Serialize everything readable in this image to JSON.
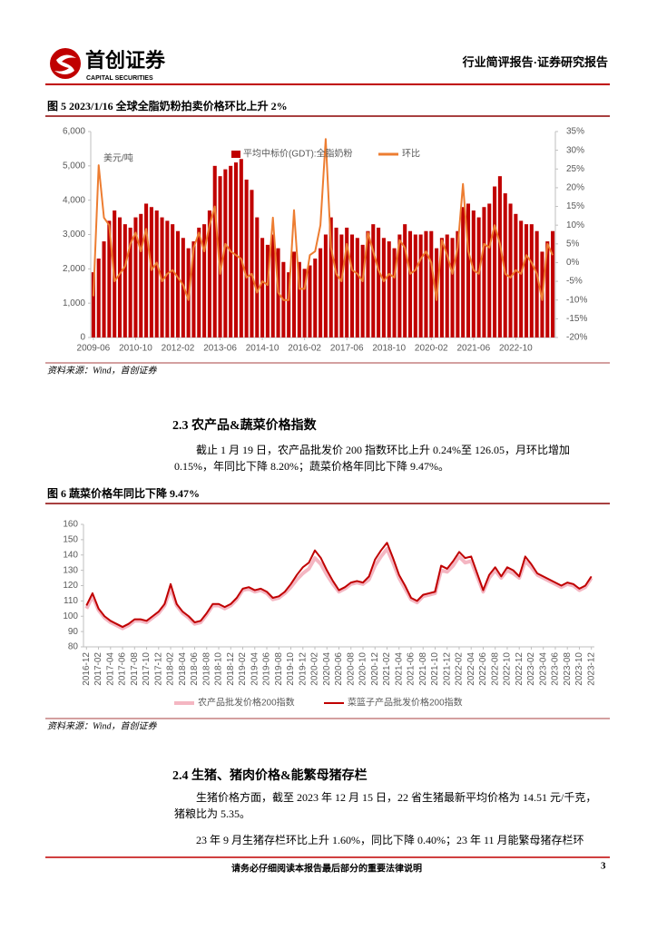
{
  "header": {
    "logo_cn": "首创证券",
    "logo_en": "CAPITAL SECURITIES",
    "right": "行业简评报告·证券研究报告"
  },
  "chart_data": [
    {
      "type": "combo",
      "title": "图 5 2023/1/16 全球全脂奶粉拍卖价格环比上升 2%",
      "unit": "美元/吨",
      "source": "资料来源：Wind，首创证券",
      "legend": "top",
      "categories": [
        "2009-06",
        null,
        null,
        null,
        null,
        null,
        null,
        null,
        "2010-10",
        null,
        null,
        null,
        null,
        null,
        null,
        null,
        "2012-02",
        null,
        null,
        null,
        null,
        null,
        null,
        null,
        "2013-06",
        null,
        null,
        null,
        null,
        null,
        null,
        null,
        "2014-10",
        null,
        null,
        null,
        null,
        null,
        null,
        null,
        "2016-02",
        null,
        null,
        null,
        null,
        null,
        null,
        null,
        "2017-06",
        null,
        null,
        null,
        null,
        null,
        null,
        null,
        "2018-10",
        null,
        null,
        null,
        null,
        null,
        null,
        null,
        "2020-02",
        null,
        null,
        null,
        null,
        null,
        null,
        null,
        "2021-06",
        null,
        null,
        null,
        null,
        null,
        null,
        null,
        "2022-10",
        null,
        null,
        null,
        null,
        null,
        null,
        null
      ],
      "series": [
        {
          "name": "平均中标价(GDT):全脂奶粉",
          "type": "bar",
          "color": "#c00000",
          "values": [
            1900,
            2300,
            2800,
            3400,
            3700,
            3500,
            3300,
            3200,
            3500,
            3600,
            3900,
            3800,
            3700,
            3500,
            3400,
            3300,
            3100,
            2900,
            2600,
            2800,
            3200,
            3300,
            3700,
            5000,
            4700,
            4900,
            5000,
            5100,
            5200,
            4600,
            4300,
            3500,
            2900,
            2700,
            3000,
            2600,
            2200,
            1900,
            2500,
            2200,
            2000,
            2100,
            2300,
            2600,
            3000,
            3500,
            3200,
            3000,
            3200,
            3000,
            2900,
            2700,
            3100,
            3300,
            3200,
            2900,
            2800,
            2600,
            3000,
            3300,
            3100,
            3000,
            3000,
            3100,
            3100,
            2600,
            2900,
            3000,
            2900,
            3100,
            3800,
            3900,
            3700,
            3500,
            3800,
            3900,
            4400,
            4700,
            4200,
            3900,
            3600,
            3400,
            3300,
            3300,
            3100,
            2500,
            2800,
            3100
          ]
        },
        {
          "name": "环比",
          "type": "line",
          "axis": "y2",
          "color": "#ed7d31",
          "values": [
            -9,
            26,
            12,
            10,
            -5,
            -3,
            -1,
            5,
            8,
            3,
            9,
            -2,
            0,
            -5,
            -3,
            -2,
            -4,
            -6,
            -10,
            4,
            8,
            3,
            10,
            15,
            -3,
            5,
            3,
            2,
            1,
            -4,
            -3,
            -8,
            -5,
            -6,
            12,
            -8,
            -10,
            -10,
            14,
            -7,
            -7,
            2,
            3,
            10,
            33,
            4,
            -3,
            -5,
            5,
            -2,
            -3,
            -5,
            8,
            3,
            -2,
            -5,
            -3,
            -4,
            6,
            4,
            -3,
            -2,
            1,
            3,
            0,
            -10,
            6,
            2,
            -3,
            4,
            21,
            3,
            -2,
            -3,
            5,
            4,
            10,
            5,
            -3,
            -4,
            -2,
            -3,
            2,
            0,
            -3,
            -10,
            5,
            2
          ]
        }
      ],
      "ylim": [
        0,
        6000
      ],
      "yticks": [
        0,
        {
          "value": 1000,
          "label": "1,000"
        },
        {
          "value": 2000,
          "label": "2,000"
        },
        {
          "value": 3000,
          "label": "3,000"
        },
        {
          "value": 4000,
          "label": "4,000"
        },
        {
          "value": 5000,
          "label": "5,000"
        },
        {
          "value": 6000,
          "label": "6,000"
        }
      ],
      "y2lim": [
        -20,
        35
      ],
      "y2ticks": [
        {
          "value": -20,
          "label": "-20%"
        },
        {
          "value": -15,
          "label": "-15%"
        },
        {
          "value": -10,
          "label": "-10%"
        },
        {
          "value": -5,
          "label": "-5%"
        },
        {
          "value": 0,
          "label": "0%"
        },
        {
          "value": 5,
          "label": "5%"
        },
        {
          "value": 10,
          "label": "10%"
        },
        {
          "value": 15,
          "label": "15%"
        },
        {
          "value": 20,
          "label": "20%"
        },
        {
          "value": 25,
          "label": "25%"
        },
        {
          "value": 30,
          "label": "30%"
        },
        {
          "value": 35,
          "label": "35%"
        }
      ]
    },
    {
      "type": "line",
      "title": "图 6 蔬菜价格年同比下降 9.47%",
      "source": "资料来源：Wind，首创证券",
      "legend": "bottom",
      "categories": [
        "2016-12",
        null,
        "2017-02",
        null,
        "2017-04",
        null,
        "2017-06",
        null,
        "2017-08",
        null,
        "2017-10",
        null,
        "2017-12",
        null,
        "2018-02",
        null,
        "2018-04",
        null,
        "2018-06",
        null,
        "2018-08",
        null,
        "2018-10",
        null,
        "2018-12",
        null,
        "2019-02",
        null,
        "2019-04",
        null,
        "2019-06",
        null,
        "2019-08",
        null,
        "2019-10",
        null,
        "2019-12",
        null,
        "2020-02",
        null,
        "2020-04",
        null,
        "2020-06",
        null,
        "2020-08",
        null,
        "2020-10",
        null,
        "2020-12",
        null,
        "2021-02",
        null,
        "2021-04",
        null,
        "2021-06",
        null,
        "2021-08",
        null,
        "2021-10",
        null,
        "2021-12",
        null,
        "2022-02",
        null,
        "2022-04",
        null,
        "2022-06",
        null,
        "2022-08",
        null,
        "2022-10",
        null,
        "2022-12",
        null,
        "2023-02",
        null,
        "2023-04",
        null,
        "2023-06",
        null,
        "2023-08",
        null,
        "2023-10",
        null,
        "2023-12"
      ],
      "series": [
        {
          "name": "农产品批发价格200指数",
          "color": "#f4b6c2",
          "width": 4,
          "values": [
            105,
            113,
            104,
            99,
            96,
            94,
            92,
            94,
            97,
            97,
            96,
            99,
            102,
            107,
            118,
            107,
            102,
            99,
            95,
            96,
            101,
            107,
            107,
            105,
            107,
            111,
            117,
            118,
            116,
            117,
            115,
            111,
            112,
            115,
            119,
            124,
            128,
            131,
            138,
            134,
            127,
            121,
            116,
            118,
            121,
            122,
            121,
            124,
            133,
            139,
            144,
            135,
            125,
            118,
            111,
            109,
            113,
            114,
            115,
            130,
            129,
            133,
            139,
            135,
            136,
            126,
            116,
            125,
            130,
            125,
            130,
            128,
            125,
            136,
            132,
            127,
            125,
            123,
            121,
            119,
            121,
            120,
            117,
            119,
            125
          ]
        },
        {
          "name": "菜篮子产品批发价格200指数",
          "color": "#c00000",
          "width": 2,
          "values": [
            107,
            115,
            105,
            100,
            97,
            95,
            93,
            95,
            98,
            98,
            97,
            100,
            103,
            108,
            121,
            108,
            103,
            100,
            96,
            97,
            102,
            108,
            108,
            106,
            108,
            112,
            118,
            119,
            117,
            118,
            116,
            112,
            113,
            116,
            121,
            127,
            132,
            135,
            143,
            138,
            130,
            123,
            117,
            119,
            122,
            123,
            122,
            126,
            137,
            143,
            148,
            138,
            127,
            120,
            112,
            110,
            114,
            115,
            116,
            133,
            131,
            136,
            142,
            138,
            139,
            128,
            117,
            127,
            132,
            126,
            132,
            130,
            126,
            139,
            134,
            128,
            126,
            124,
            122,
            120,
            122,
            121,
            118,
            120,
            126
          ]
        }
      ],
      "ylim": [
        80,
        160
      ],
      "yticks": [
        80,
        90,
        100,
        110,
        120,
        130,
        140,
        150,
        160
      ]
    }
  ],
  "sections": [
    {
      "title": "2.3 农产品&蔬菜价格指数",
      "paragraphs": [
        [
          "截止 1 月 19 日，农产品批发价 200 指数环比上升 0.24%至 126.05，月环比增加",
          "0.15%，年同比下降 8.20%；蔬菜价格年同比下降 9.47%。"
        ]
      ]
    },
    {
      "title": "2.4 生猪、猪肉价格&能繁母猪存栏",
      "paragraphs": [
        [
          "生猪价格方面，截至 2023 年 12 月 15 日，22 省生猪最新平均价格为 14.51 元/千克，",
          "猪粮比为 5.35。"
        ],
        [
          "23 年 9 月生猪存栏环比上升 1.60%，同比下降 0.40%；23 年 11 月能繁母猪存栏环"
        ]
      ]
    }
  ],
  "footer": {
    "note": "请务必仔细阅读本报告最后部分的重要法律说明",
    "page": "3"
  }
}
